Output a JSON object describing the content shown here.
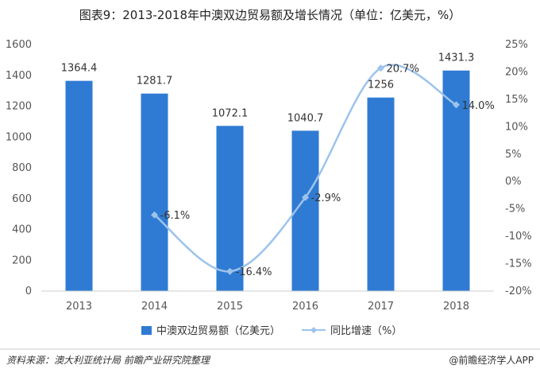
{
  "title": "图表9：2013-2018年中澳双边贸易额及增长情况（单位：亿美元，%）",
  "source_left": "资料来源：澳大利亚统计局 前瞻产业研究院整理",
  "source_right": "@前瞻经济学人APP",
  "colors": {
    "bar": "#2f7bd3",
    "line": "#9dc3ec",
    "grid": "#e4e4e4",
    "axis": "#cfcfcf"
  },
  "chart_data": {
    "type": "bar",
    "categories": [
      "2013",
      "2014",
      "2015",
      "2016",
      "2017",
      "2018"
    ],
    "series": [
      {
        "name": "中澳双边贸易额（亿美元）",
        "type": "bar",
        "axis": "left",
        "values": [
          1364.4,
          1281.7,
          1072.1,
          1040.7,
          1256,
          1431.3
        ],
        "labels": [
          "1364.4",
          "1281.7",
          "1072.1",
          "1040.7",
          "1256",
          "1431.3"
        ]
      },
      {
        "name": "同比增速（%）",
        "type": "line",
        "axis": "right",
        "values": [
          null,
          -6.1,
          -16.4,
          -2.9,
          20.7,
          14.0
        ],
        "labels": [
          "",
          "-6.1%",
          "-16.4%",
          "-2.9%",
          "20.7%",
          "14.0%"
        ]
      }
    ],
    "y_left": {
      "min": 0,
      "max": 1600,
      "step": 200,
      "ticks": [
        "0",
        "200",
        "400",
        "600",
        "800",
        "1000",
        "1200",
        "1400",
        "1600"
      ]
    },
    "y_right": {
      "min": -20,
      "max": 25,
      "step": 5,
      "ticks": [
        "-20%",
        "-15%",
        "-10%",
        "-5%",
        "0%",
        "5%",
        "10%",
        "15%",
        "20%",
        "25%"
      ]
    },
    "grid": false,
    "legend_position": "bottom"
  }
}
